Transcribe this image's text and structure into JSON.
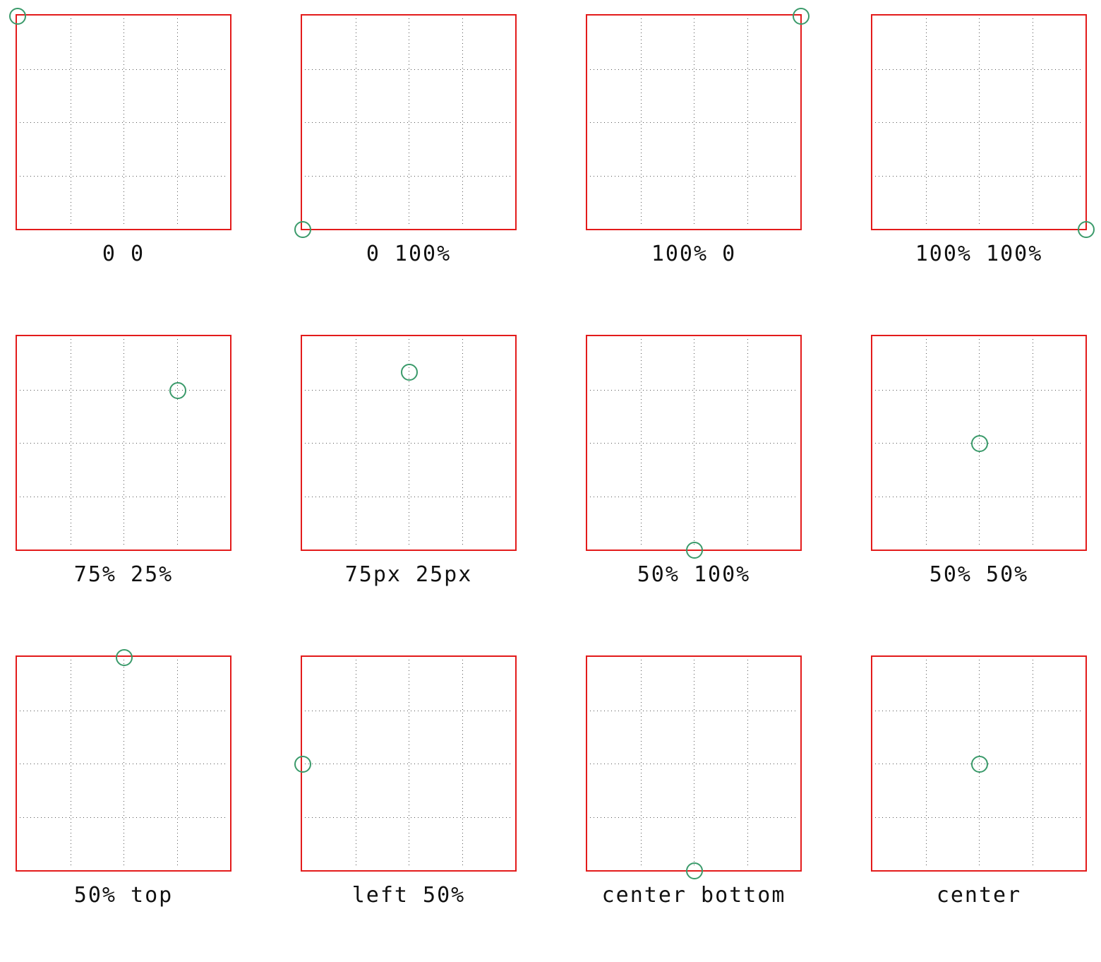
{
  "colors": {
    "box_border": "#e31b1b",
    "marker": "#3a9a6a",
    "grid_dots": "#555555"
  },
  "examples": [
    {
      "label": "0 0",
      "origin_fraction": [
        0.0,
        0.0
      ]
    },
    {
      "label": "0 100%",
      "origin_fraction": [
        0.0,
        1.0
      ]
    },
    {
      "label": "100% 0",
      "origin_fraction": [
        1.0,
        0.0
      ]
    },
    {
      "label": "100% 100%",
      "origin_fraction": [
        1.0,
        1.0
      ]
    },
    {
      "label": "75% 25%",
      "origin_fraction": [
        0.75,
        0.25
      ]
    },
    {
      "label": "75px 25px",
      "origin_fraction": [
        0.5,
        0.167
      ]
    },
    {
      "label": "50% 100%",
      "origin_fraction": [
        0.5,
        1.0
      ]
    },
    {
      "label": "50% 50%",
      "origin_fraction": [
        0.5,
        0.5
      ]
    },
    {
      "label": "50% top",
      "origin_fraction": [
        0.5,
        0.0
      ]
    },
    {
      "label": "left 50%",
      "origin_fraction": [
        0.0,
        0.5
      ]
    },
    {
      "label": "center bottom",
      "origin_fraction": [
        0.5,
        1.0
      ]
    },
    {
      "label": "center",
      "origin_fraction": [
        0.5,
        0.5
      ]
    }
  ]
}
